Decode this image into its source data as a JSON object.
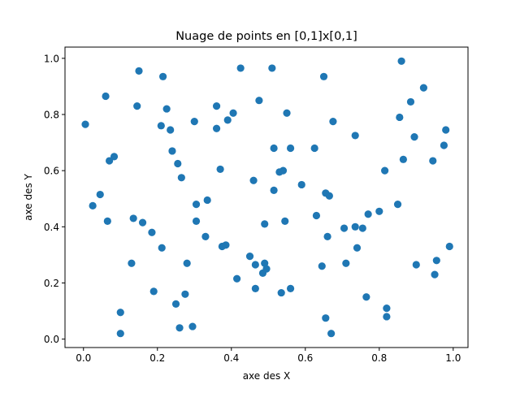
{
  "chart_data": {
    "type": "scatter",
    "title": "Nuage de points en [0,1]x[0,1]",
    "xlabel": "axe des X",
    "ylabel": "axe des Y",
    "xlim": [
      -0.05,
      1.04
    ],
    "ylim": [
      -0.03,
      1.04
    ],
    "xticks": [
      "0.0",
      "0.2",
      "0.4",
      "0.6",
      "0.8",
      "1.0"
    ],
    "yticks": [
      "0.0",
      "0.2",
      "0.4",
      "0.6",
      "0.8",
      "1.0"
    ],
    "grid": false,
    "marker_color": "#1f77b4",
    "points": [
      [
        0.005,
        0.765
      ],
      [
        0.025,
        0.475
      ],
      [
        0.045,
        0.515
      ],
      [
        0.06,
        0.865
      ],
      [
        0.065,
        0.42
      ],
      [
        0.07,
        0.635
      ],
      [
        0.083,
        0.65
      ],
      [
        0.1,
        0.095
      ],
      [
        0.1,
        0.02
      ],
      [
        0.13,
        0.27
      ],
      [
        0.135,
        0.43
      ],
      [
        0.145,
        0.83
      ],
      [
        0.15,
        0.955
      ],
      [
        0.16,
        0.415
      ],
      [
        0.185,
        0.38
      ],
      [
        0.19,
        0.17
      ],
      [
        0.21,
        0.76
      ],
      [
        0.212,
        0.325
      ],
      [
        0.215,
        0.935
      ],
      [
        0.225,
        0.82
      ],
      [
        0.235,
        0.745
      ],
      [
        0.24,
        0.67
      ],
      [
        0.25,
        0.125
      ],
      [
        0.255,
        0.625
      ],
      [
        0.265,
        0.575
      ],
      [
        0.26,
        0.04
      ],
      [
        0.275,
        0.16
      ],
      [
        0.28,
        0.27
      ],
      [
        0.295,
        0.045
      ],
      [
        0.3,
        0.775
      ],
      [
        0.305,
        0.48
      ],
      [
        0.305,
        0.42
      ],
      [
        0.33,
        0.365
      ],
      [
        0.335,
        0.495
      ],
      [
        0.36,
        0.83
      ],
      [
        0.36,
        0.75
      ],
      [
        0.37,
        0.605
      ],
      [
        0.375,
        0.33
      ],
      [
        0.385,
        0.335
      ],
      [
        0.39,
        0.78
      ],
      [
        0.405,
        0.805
      ],
      [
        0.415,
        0.215
      ],
      [
        0.425,
        0.965
      ],
      [
        0.45,
        0.295
      ],
      [
        0.46,
        0.565
      ],
      [
        0.465,
        0.265
      ],
      [
        0.465,
        0.18
      ],
      [
        0.475,
        0.85
      ],
      [
        0.485,
        0.235
      ],
      [
        0.49,
        0.41
      ],
      [
        0.49,
        0.27
      ],
      [
        0.495,
        0.25
      ],
      [
        0.51,
        0.965
      ],
      [
        0.515,
        0.68
      ],
      [
        0.515,
        0.53
      ],
      [
        0.53,
        0.595
      ],
      [
        0.54,
        0.6
      ],
      [
        0.535,
        0.165
      ],
      [
        0.545,
        0.42
      ],
      [
        0.55,
        0.805
      ],
      [
        0.56,
        0.68
      ],
      [
        0.56,
        0.18
      ],
      [
        0.59,
        0.55
      ],
      [
        0.625,
        0.68
      ],
      [
        0.63,
        0.44
      ],
      [
        0.645,
        0.26
      ],
      [
        0.65,
        0.935
      ],
      [
        0.655,
        0.52
      ],
      [
        0.655,
        0.075
      ],
      [
        0.66,
        0.365
      ],
      [
        0.665,
        0.51
      ],
      [
        0.67,
        0.02
      ],
      [
        0.675,
        0.775
      ],
      [
        0.705,
        0.395
      ],
      [
        0.71,
        0.27
      ],
      [
        0.735,
        0.725
      ],
      [
        0.735,
        0.4
      ],
      [
        0.74,
        0.325
      ],
      [
        0.755,
        0.395
      ],
      [
        0.765,
        0.15
      ],
      [
        0.77,
        0.445
      ],
      [
        0.8,
        0.455
      ],
      [
        0.815,
        0.6
      ],
      [
        0.82,
        0.11
      ],
      [
        0.82,
        0.08
      ],
      [
        0.85,
        0.48
      ],
      [
        0.855,
        0.79
      ],
      [
        0.86,
        0.99
      ],
      [
        0.865,
        0.64
      ],
      [
        0.885,
        0.845
      ],
      [
        0.895,
        0.72
      ],
      [
        0.9,
        0.265
      ],
      [
        0.92,
        0.895
      ],
      [
        0.945,
        0.635
      ],
      [
        0.95,
        0.23
      ],
      [
        0.955,
        0.28
      ],
      [
        0.975,
        0.69
      ],
      [
        0.98,
        0.745
      ],
      [
        0.99,
        0.33
      ]
    ]
  }
}
